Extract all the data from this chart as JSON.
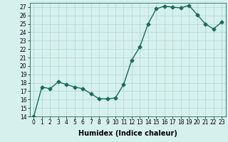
{
  "x": [
    0,
    1,
    2,
    3,
    4,
    5,
    6,
    7,
    8,
    9,
    10,
    11,
    12,
    13,
    14,
    15,
    16,
    17,
    18,
    19,
    20,
    21,
    22,
    23
  ],
  "y": [
    14,
    17.5,
    17.3,
    18.1,
    17.8,
    17.5,
    17.3,
    16.7,
    16.1,
    16.1,
    16.2,
    17.8,
    20.7,
    22.3,
    25.0,
    26.8,
    27.1,
    27.0,
    26.9,
    27.2,
    26.1,
    25.0,
    24.4,
    25.2
  ],
  "line_color": "#1a6b5a",
  "marker": "D",
  "marker_size": 2.5,
  "linewidth": 1.0,
  "bg_color": "#d6f0ee",
  "grid_color": "#aad8d4",
  "xlabel": "Humidex (Indice chaleur)",
  "ylim": [
    14,
    27.5
  ],
  "yticks": [
    14,
    15,
    16,
    17,
    18,
    19,
    20,
    21,
    22,
    23,
    24,
    25,
    26,
    27
  ],
  "xticks": [
    0,
    1,
    2,
    3,
    4,
    5,
    6,
    7,
    8,
    9,
    10,
    11,
    12,
    13,
    14,
    15,
    16,
    17,
    18,
    19,
    20,
    21,
    22,
    23
  ],
  "tick_fontsize": 5.5,
  "xlabel_fontsize": 7.0
}
